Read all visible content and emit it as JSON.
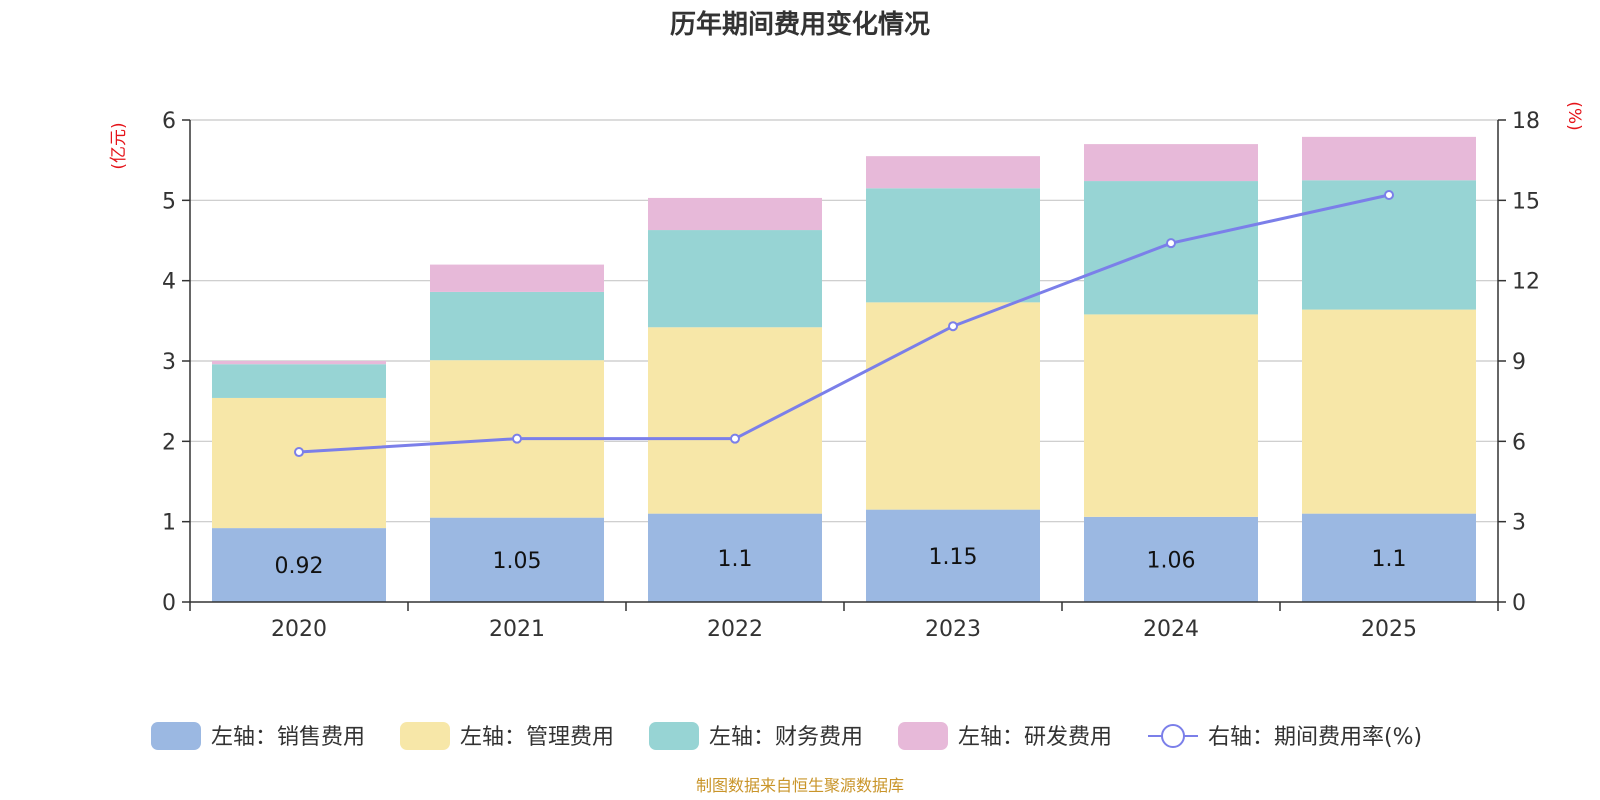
{
  "chart_data": {
    "type": "bar",
    "title": "历年期间费用变化情况",
    "categories": [
      "2020",
      "2021",
      "2022",
      "2023",
      "2024",
      "2025"
    ],
    "stacked": true,
    "left_axis": {
      "unit": "(亿元)",
      "ylim": [
        0,
        6
      ],
      "ticks": [
        "0",
        "1",
        "2",
        "3",
        "4",
        "5",
        "6"
      ]
    },
    "right_axis": {
      "unit": "(%)",
      "ylim": [
        0,
        18
      ],
      "ticks": [
        "0",
        "3",
        "6",
        "9",
        "12",
        "15",
        "18"
      ]
    },
    "grid": true,
    "series": [
      {
        "name": "左轴：销售费用",
        "axis": "left",
        "color": "#9bb8e2",
        "values": [
          0.92,
          1.05,
          1.1,
          1.15,
          1.06,
          1.1
        ],
        "labels": [
          "0.92",
          "1.05",
          "1.1",
          "1.15",
          "1.06",
          "1.1"
        ]
      },
      {
        "name": "左轴：管理费用",
        "axis": "left",
        "color": "#f7e7a8",
        "values": [
          1.62,
          1.96,
          2.32,
          2.58,
          2.52,
          2.54
        ]
      },
      {
        "name": "左轴：财务费用",
        "axis": "left",
        "color": "#97d4d4",
        "values": [
          0.42,
          0.85,
          1.21,
          1.42,
          1.66,
          1.61
        ]
      },
      {
        "name": "左轴：研发费用",
        "axis": "left",
        "color": "#e7b9d9",
        "values": [
          0.04,
          0.34,
          0.4,
          0.4,
          0.46,
          0.54
        ]
      },
      {
        "name": "右轴：期间费用率(%)",
        "axis": "right",
        "type": "line",
        "color": "#7b7fe9",
        "values": [
          5.6,
          6.1,
          6.1,
          10.3,
          13.4,
          15.2
        ]
      }
    ],
    "legend_position": "bottom",
    "source": "制图数据来自恒生聚源数据库"
  }
}
